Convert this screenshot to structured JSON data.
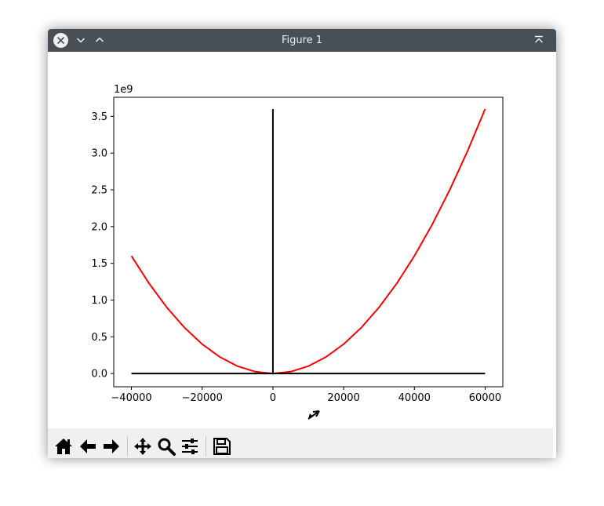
{
  "window": {
    "title": "Figure 1"
  },
  "titlebar": {
    "buttons": [
      "close-icon",
      "minimize-icon",
      "maximize-icon",
      "keep-above-icon"
    ]
  },
  "toolbar": {
    "tools": [
      "home-icon",
      "back-icon",
      "forward-icon",
      "pan-icon",
      "zoom-icon",
      "configure-subplots-icon",
      "save-icon"
    ]
  },
  "colors": {
    "titlebar": "#475057",
    "toolbar": "#eff0f1",
    "curve": "#ff0000",
    "axes_lines": "#000000"
  },
  "chart_data": {
    "type": "line",
    "offset_label": "1e9",
    "xlim": [
      -45000,
      65000
    ],
    "ylim": [
      -0.18,
      3.76
    ],
    "x_ticks": [
      -40000,
      -20000,
      0,
      20000,
      40000,
      60000
    ],
    "x_tick_labels": [
      "−40000",
      "−20000",
      "0",
      "20000",
      "40000",
      "60000"
    ],
    "y_ticks": [
      0.0,
      0.5,
      1.0,
      1.5,
      2.0,
      2.5,
      3.0,
      3.5
    ],
    "y_tick_labels": [
      "0.0",
      "0.5",
      "1.0",
      "1.5",
      "2.0",
      "2.5",
      "3.0",
      "3.5"
    ],
    "series": [
      {
        "color": "#ff0000",
        "x": [
          -40000,
          -35000,
          -30000,
          -25000,
          -20000,
          -15000,
          -10000,
          -5000,
          0,
          5000,
          10000,
          15000,
          20000,
          25000,
          30000,
          35000,
          40000,
          45000,
          50000,
          55000,
          60000
        ],
        "y": [
          1.6,
          1.225,
          0.9,
          0.625,
          0.4,
          0.225,
          0.1,
          0.025,
          0.0,
          0.025,
          0.1,
          0.225,
          0.4,
          0.625,
          0.9,
          1.225,
          1.6,
          2.025,
          2.5,
          3.025,
          3.6
        ]
      },
      {
        "color": "#000000",
        "x": [
          -40000,
          60000
        ],
        "y": [
          0.0,
          0.0
        ]
      },
      {
        "color": "#000000",
        "x": [
          0,
          0
        ],
        "y": [
          0.0,
          3.6
        ]
      }
    ],
    "grid": false,
    "legend": "none"
  }
}
